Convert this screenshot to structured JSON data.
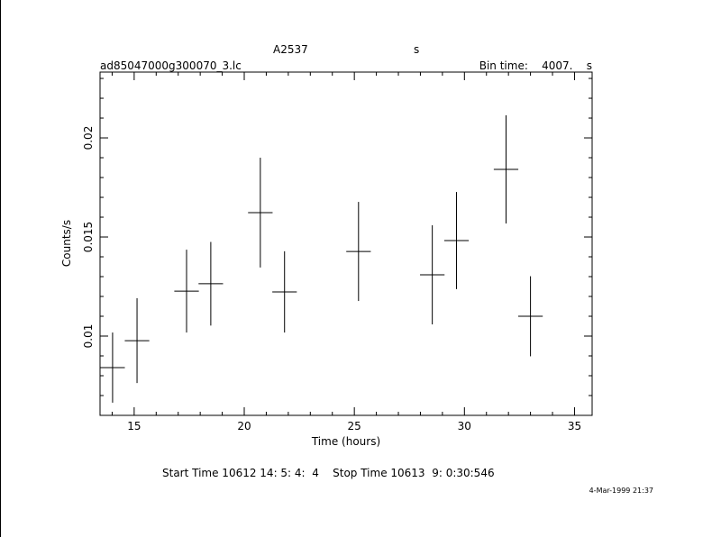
{
  "chart_data": {
    "type": "errorbar",
    "title": "A2537",
    "title_unit": "s",
    "subtitle": "ad85047000g300070_3.lc",
    "bin_time": "Bin time:    4007.    s",
    "xlabel": "Time (hours)",
    "ylabel": "Counts/s",
    "footer": "Start Time 10612 14: 5: 4:  4    Stop Time 10613  9: 0:30:546",
    "date": "4-Mar-1999 21:37",
    "color": "#000000",
    "x": [
      14.02,
      15.13,
      17.38,
      18.48,
      20.73,
      21.83,
      25.19,
      28.54,
      29.64,
      31.89,
      33.0
    ],
    "values": [
      0.00841,
      0.00977,
      0.01227,
      0.01264,
      0.01623,
      0.01223,
      0.01427,
      0.01309,
      0.01482,
      0.01841,
      0.011
    ],
    "xerr": [
      0.557,
      0.557,
      0.557,
      0.557,
      0.557,
      0.557,
      0.557,
      0.557,
      0.557,
      0.557,
      0.557
    ],
    "yerr": [
      0.00177,
      0.00214,
      0.00209,
      0.00211,
      0.00277,
      0.00205,
      0.0025,
      0.0025,
      0.00245,
      0.00273,
      0.00202
    ],
    "xlim": [
      13.45,
      35.8
    ],
    "ylim": [
      0.006,
      0.02332
    ],
    "xticks": [
      15,
      20,
      25,
      30,
      35
    ],
    "yticks": [
      0.01,
      0.015,
      0.02
    ],
    "xminorticks": [
      14,
      16,
      17,
      18,
      19,
      21,
      22,
      23,
      24,
      26,
      27,
      28,
      29,
      31,
      32,
      33,
      34
    ],
    "yminorticks": [
      0.007,
      0.008,
      0.009,
      0.011,
      0.012,
      0.013,
      0.014,
      0.016,
      0.017,
      0.018,
      0.019,
      0.021,
      0.022,
      0.023
    ]
  }
}
